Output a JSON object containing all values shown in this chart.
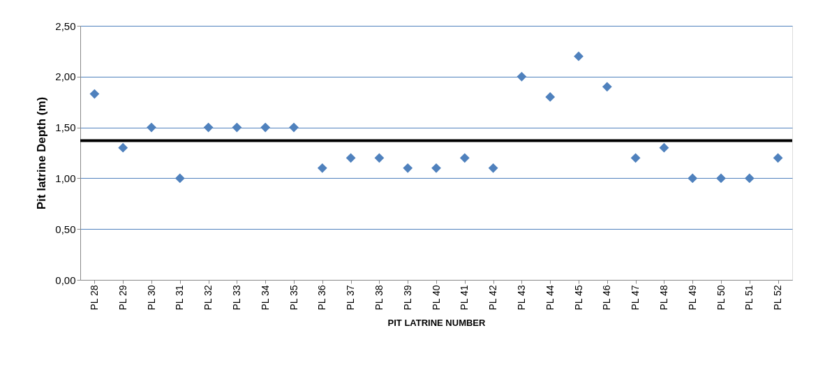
{
  "chart_data": {
    "type": "scatter",
    "xlabel": "PIT LATRINE NUMBER",
    "ylabel": "Pit latrine Depth (m)",
    "categories": [
      "PL 28",
      "PL 29",
      "PL 30",
      "PL 31",
      "PL 32",
      "PL 33",
      "PL 34",
      "PL 35",
      "PL 36",
      "PL 37",
      "PL 38",
      "PL 39",
      "PL 40",
      "PL 41",
      "PL 42",
      "PL 43",
      "PL 44",
      "PL 45",
      "PL 46",
      "PL 47",
      "PL 48",
      "PL 49",
      "PL 50",
      "PL 51",
      "PL 52"
    ],
    "series": [
      {
        "color": "#4f81bd",
        "values": [
          1.83,
          1.3,
          1.5,
          1.0,
          1.5,
          1.5,
          1.5,
          1.5,
          1.1,
          1.2,
          1.2,
          1.1,
          1.1,
          1.2,
          1.1,
          2.0,
          1.8,
          2.2,
          1.9,
          1.2,
          1.3,
          1.0,
          1.0,
          1.0,
          1.2
        ]
      }
    ],
    "ylim": [
      0,
      2.5
    ],
    "yticks": [
      {
        "value": 0,
        "label": "0,00"
      },
      {
        "value": 0.5,
        "label": "0,50"
      },
      {
        "value": 1,
        "label": "1,00"
      },
      {
        "value": 1.5,
        "label": "1,50"
      },
      {
        "value": 2,
        "label": "2,00"
      },
      {
        "value": 2.5,
        "label": "2,50"
      }
    ],
    "ref_lines": [
      {
        "axis": "y",
        "value": 1.37,
        "color": "#000000",
        "line_style": "solid"
      }
    ],
    "grid": "y",
    "marker": "diamond"
  }
}
